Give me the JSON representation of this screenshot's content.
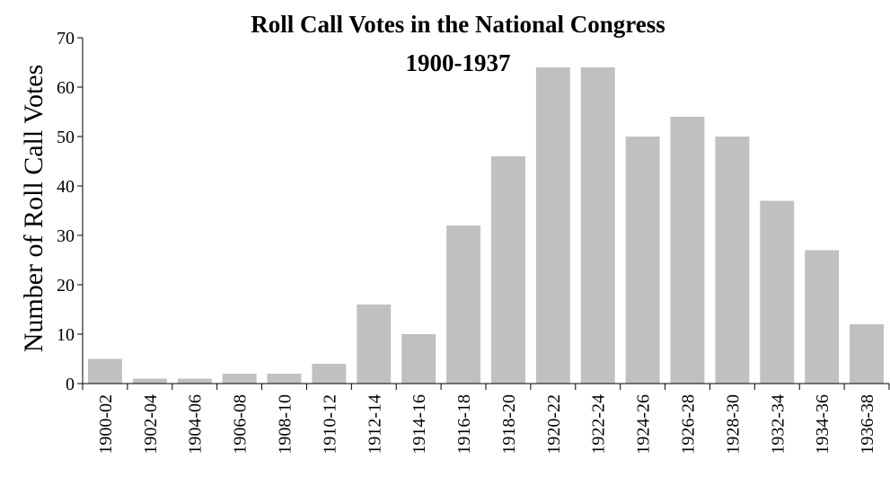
{
  "chart_data": {
    "type": "bar",
    "title": "Roll Call Votes in the National Congress",
    "subtitle": "1900-1937",
    "ylabel": "Number of Roll Call Votes",
    "xlabel": "",
    "ylim": [
      0,
      70
    ],
    "yticks": [
      0,
      10,
      20,
      30,
      40,
      50,
      60,
      70
    ],
    "categories": [
      "1900-02",
      "1902-04",
      "1904-06",
      "1906-08",
      "1908-10",
      "1910-12",
      "1912-14",
      "1914-16",
      "1916-18",
      "1918-20",
      "1920-22",
      "1922-24",
      "1924-26",
      "1926-28",
      "1928-30",
      "1932-34",
      "1934-36",
      "1936-38"
    ],
    "values": [
      5,
      1,
      1,
      2,
      2,
      4,
      16,
      10,
      32,
      46,
      64,
      64,
      50,
      54,
      50,
      37,
      27,
      12
    ],
    "grid": false,
    "legend": "none",
    "bar_color": "#c0c0c0"
  }
}
